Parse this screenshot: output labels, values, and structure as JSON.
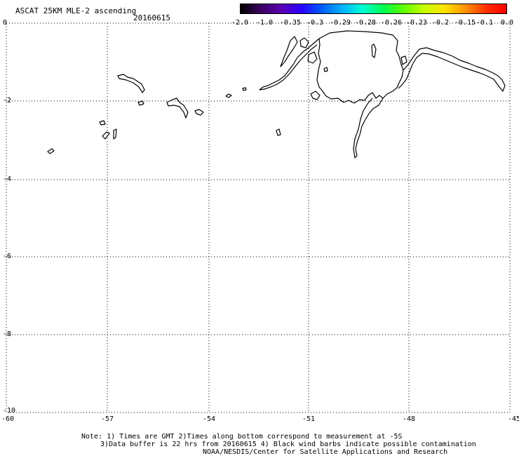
{
  "header": {
    "title": "ASCAT 25KM MLE-2 ascending",
    "date": "20160615"
  },
  "colorbar": {
    "ticks": [
      "-2.0",
      "-1.0",
      "-0.35",
      "-0.3",
      "-0.29",
      "-0.28",
      "-0.26",
      "-0.23",
      "-0.2",
      "-0.15",
      "-0.1",
      "0.0"
    ],
    "colors": [
      "#000000",
      "#3a0060",
      "#5a00b0",
      "#2a00ff",
      "#0060ff",
      "#00b4ff",
      "#00ffd0",
      "#00ff50",
      "#60ff00",
      "#c8ff00",
      "#ffe000",
      "#ff9000",
      "#ff3000",
      "#ff0000"
    ]
  },
  "axes": {
    "y_labels": [
      "0",
      "-2",
      "-4",
      "-6",
      "-8",
      "-10"
    ],
    "x_labels": [
      "-60",
      "-57",
      "-54",
      "-51",
      "-48",
      "-45"
    ]
  },
  "notes": {
    "line1": "Note: 1) Times are GMT 2)Times along bottom correspond to measurement at -5S",
    "line2": "3)Data buffer is 22 hrs from 20160615 4) Black wind barbs indicate possible contamination",
    "line3": "NOAA/NESDIS/Center for Satellite Applications and Research"
  }
}
